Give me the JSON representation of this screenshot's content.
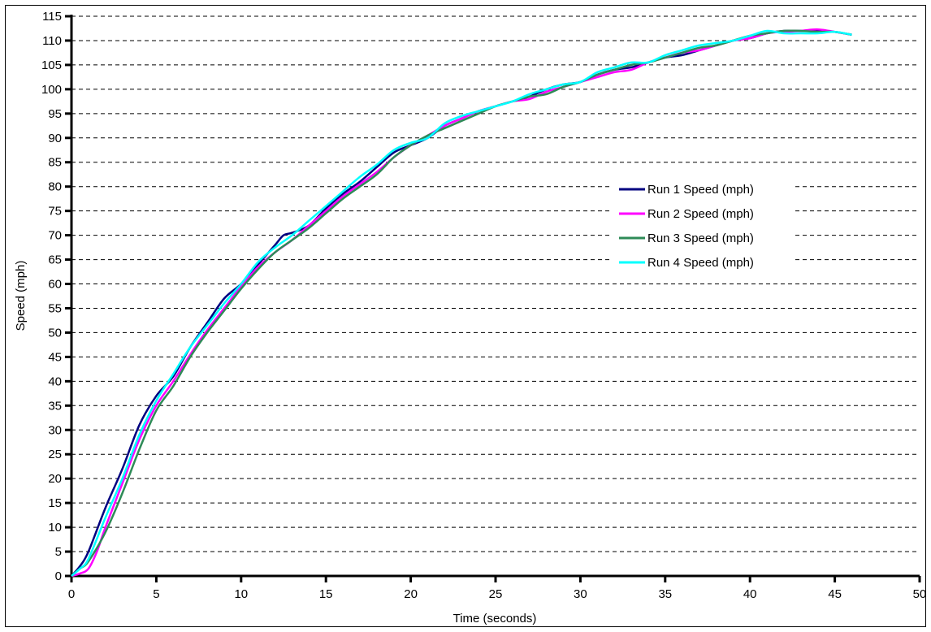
{
  "chart_data": {
    "type": "line",
    "title": "",
    "xlabel": "Time (seconds)",
    "ylabel": "Speed (mph)",
    "xlim": [
      0,
      50
    ],
    "ylim": [
      0,
      115
    ],
    "x_ticks": [
      0,
      5,
      10,
      15,
      20,
      25,
      30,
      35,
      40,
      45,
      50
    ],
    "y_ticks": [
      0,
      5,
      10,
      15,
      20,
      25,
      30,
      35,
      40,
      45,
      50,
      55,
      60,
      65,
      70,
      75,
      80,
      85,
      90,
      95,
      100,
      105,
      110,
      115
    ],
    "grid": "horizontal dashed",
    "legend_position": "center-right",
    "series": [
      {
        "name": "Run 1 Speed (mph)",
        "color": "#000080",
        "points": [
          [
            0,
            0
          ],
          [
            0.5,
            2
          ],
          [
            1,
            5
          ],
          [
            2,
            14
          ],
          [
            3,
            22
          ],
          [
            4,
            31
          ],
          [
            5,
            37
          ],
          [
            6,
            41
          ],
          [
            7,
            47
          ],
          [
            8,
            52
          ],
          [
            9,
            57
          ],
          [
            10,
            60
          ],
          [
            11,
            64
          ],
          [
            12,
            68
          ],
          [
            12.5,
            70
          ],
          [
            13,
            70.5
          ],
          [
            14,
            72
          ],
          [
            15,
            75.5
          ],
          [
            16,
            78.5
          ],
          [
            17,
            81
          ],
          [
            18,
            84
          ],
          [
            19,
            87
          ],
          [
            20,
            88.5
          ],
          [
            21,
            90
          ],
          [
            22,
            92.5
          ],
          [
            23,
            94
          ],
          [
            24,
            95.5
          ],
          [
            25,
            96.5
          ],
          [
            26,
            97.5
          ],
          [
            27,
            98.5
          ],
          [
            28,
            100
          ],
          [
            29,
            101
          ],
          [
            30,
            101.5
          ],
          [
            31,
            103
          ],
          [
            32,
            104
          ],
          [
            33,
            104.5
          ],
          [
            34,
            105.5
          ],
          [
            35,
            106.5
          ],
          [
            36,
            107
          ],
          [
            37,
            108
          ],
          [
            38,
            109
          ],
          [
            39,
            110
          ],
          [
            40,
            110.5
          ],
          [
            41,
            111.5
          ],
          [
            42,
            112
          ],
          [
            43,
            112
          ],
          [
            44,
            112
          ],
          [
            45,
            111.8
          ],
          [
            46,
            111.2
          ]
        ]
      },
      {
        "name": "Run 2 Speed (mph)",
        "color": "#FF00FF",
        "points": [
          [
            0,
            0
          ],
          [
            0.5,
            0.5
          ],
          [
            1,
            1.5
          ],
          [
            1.5,
            5
          ],
          [
            2,
            10
          ],
          [
            3,
            19
          ],
          [
            4,
            28
          ],
          [
            5,
            35
          ],
          [
            6,
            40
          ],
          [
            7,
            45.5
          ],
          [
            8,
            50.5
          ],
          [
            9,
            55
          ],
          [
            10,
            59.5
          ],
          [
            11,
            63.5
          ],
          [
            12,
            66.5
          ],
          [
            13,
            69
          ],
          [
            14,
            72
          ],
          [
            15,
            75
          ],
          [
            16,
            78
          ],
          [
            17,
            80.5
          ],
          [
            18,
            83
          ],
          [
            19,
            86
          ],
          [
            20,
            88.5
          ],
          [
            21,
            90.5
          ],
          [
            22,
            92.5
          ],
          [
            23,
            94
          ],
          [
            24,
            95.5
          ],
          [
            25,
            96.5
          ],
          [
            26,
            97.5
          ],
          [
            27,
            98
          ],
          [
            28,
            99.5
          ],
          [
            29,
            100.5
          ],
          [
            30,
            101.5
          ],
          [
            31,
            102.5
          ],
          [
            32,
            103.5
          ],
          [
            33,
            104
          ],
          [
            34,
            105.5
          ],
          [
            35,
            106.5
          ],
          [
            36,
            107.5
          ],
          [
            37,
            108
          ],
          [
            38,
            109
          ],
          [
            39,
            110
          ],
          [
            40,
            110.5
          ],
          [
            41,
            111.5
          ],
          [
            42,
            111.8
          ],
          [
            43,
            112
          ],
          [
            44,
            112.3
          ],
          [
            45,
            111.8
          ],
          [
            46,
            111.2
          ]
        ]
      },
      {
        "name": "Run 3 Speed (mph)",
        "color": "#2E8B57",
        "points": [
          [
            0,
            0
          ],
          [
            0.5,
            1.5
          ],
          [
            1,
            3
          ],
          [
            2,
            9
          ],
          [
            3,
            17
          ],
          [
            4,
            26
          ],
          [
            5,
            34
          ],
          [
            6,
            39
          ],
          [
            7,
            45
          ],
          [
            8,
            50
          ],
          [
            9,
            54.5
          ],
          [
            10,
            59
          ],
          [
            11,
            63
          ],
          [
            12,
            66.5
          ],
          [
            13,
            69
          ],
          [
            14,
            71.5
          ],
          [
            15,
            74.5
          ],
          [
            16,
            77.5
          ],
          [
            17,
            80
          ],
          [
            18,
            82.5
          ],
          [
            19,
            86
          ],
          [
            20,
            88.5
          ],
          [
            21,
            90.5
          ],
          [
            22,
            92
          ],
          [
            23,
            93.5
          ],
          [
            24,
            95
          ],
          [
            25,
            96.5
          ],
          [
            26,
            97.5
          ],
          [
            27,
            98.5
          ],
          [
            28,
            99
          ],
          [
            29,
            100.5
          ],
          [
            30,
            101.5
          ],
          [
            31,
            103
          ],
          [
            32,
            104
          ],
          [
            33,
            105
          ],
          [
            34,
            105.5
          ],
          [
            35,
            106.5
          ],
          [
            36,
            107.5
          ],
          [
            37,
            108.5
          ],
          [
            38,
            109
          ],
          [
            39,
            110
          ],
          [
            40,
            111
          ],
          [
            41,
            111.5
          ],
          [
            42,
            112
          ],
          [
            43,
            112
          ],
          [
            44,
            111.8
          ],
          [
            45,
            111.8
          ],
          [
            46,
            111.2
          ]
        ]
      },
      {
        "name": "Run 4 Speed (mph)",
        "color": "#00FFFF",
        "points": [
          [
            0,
            0
          ],
          [
            0.5,
            1.5
          ],
          [
            1,
            3.5
          ],
          [
            2,
            12
          ],
          [
            3,
            20
          ],
          [
            4,
            29
          ],
          [
            5,
            36
          ],
          [
            6,
            41.5
          ],
          [
            7,
            47
          ],
          [
            8,
            51.5
          ],
          [
            9,
            56
          ],
          [
            10,
            60
          ],
          [
            11,
            64.5
          ],
          [
            12,
            67.5
          ],
          [
            13,
            70
          ],
          [
            14,
            73
          ],
          [
            15,
            76
          ],
          [
            16,
            79
          ],
          [
            17,
            82
          ],
          [
            18,
            84.5
          ],
          [
            19,
            87.5
          ],
          [
            20,
            89
          ],
          [
            21,
            90
          ],
          [
            22,
            93
          ],
          [
            23,
            94.5
          ],
          [
            24,
            95.5
          ],
          [
            25,
            96.5
          ],
          [
            26,
            97.5
          ],
          [
            27,
            99
          ],
          [
            28,
            100
          ],
          [
            29,
            101
          ],
          [
            30,
            101.5
          ],
          [
            31,
            103.5
          ],
          [
            32,
            104.5
          ],
          [
            33,
            105.5
          ],
          [
            34,
            105.5
          ],
          [
            35,
            107
          ],
          [
            36,
            108
          ],
          [
            37,
            109
          ],
          [
            38,
            109.5
          ],
          [
            39,
            110
          ],
          [
            40,
            111
          ],
          [
            41,
            112
          ],
          [
            42,
            111.5
          ],
          [
            43,
            111.5
          ],
          [
            44,
            111.5
          ],
          [
            45,
            111.8
          ],
          [
            46,
            111.2
          ]
        ]
      }
    ]
  }
}
